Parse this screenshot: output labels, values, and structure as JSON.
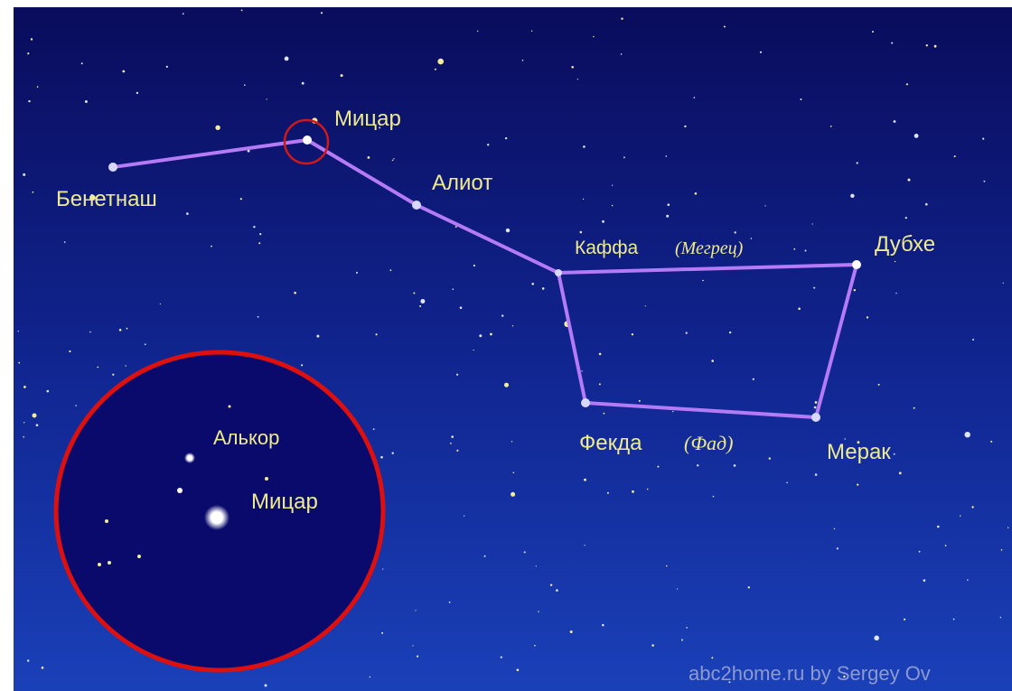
{
  "stars": [
    {
      "name": "Бенетнаш"
    },
    {
      "name": "Мицар"
    },
    {
      "name": "Алиот"
    },
    {
      "name": "Каффа",
      "alt_name": "(Мегрец)"
    },
    {
      "name": "Дубхе"
    },
    {
      "name": "Мерак"
    },
    {
      "name": "Фекда",
      "alt_name": "(Фад)"
    }
  ],
  "inset": {
    "labels": [
      "Алькор",
      "Мицар"
    ]
  },
  "credit": "abc2home.ru by Sergey Ov"
}
